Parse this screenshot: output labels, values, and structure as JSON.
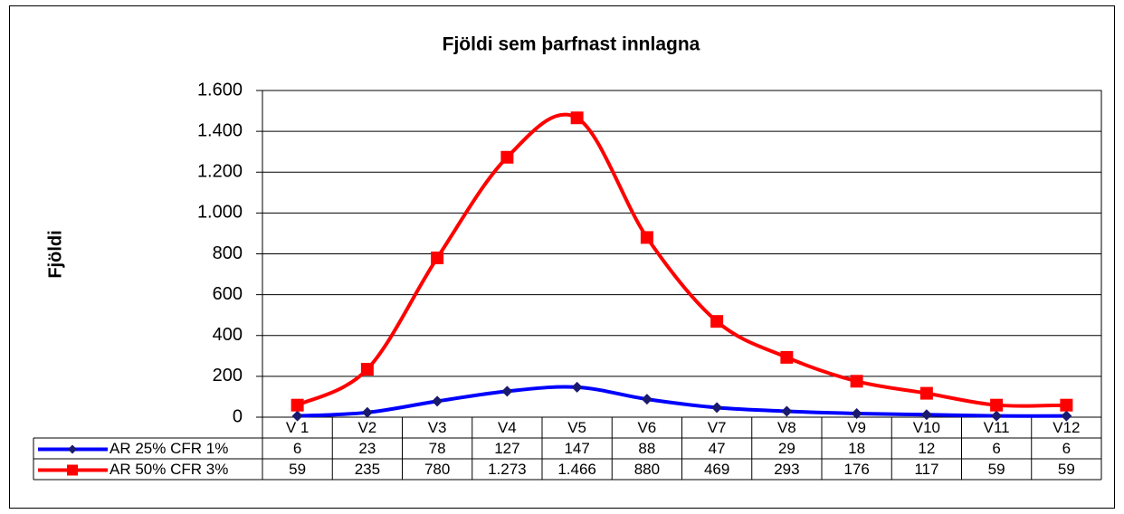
{
  "chart_data": {
    "type": "line",
    "title": "Fjöldi sem þarfnast innlagna",
    "ylabel": "Fjöldi",
    "categories": [
      "V 1",
      "V2",
      "V3",
      "V4",
      "V5",
      "V6",
      "V7",
      "V8",
      "V9",
      "V10",
      "V11",
      "V12"
    ],
    "series": [
      {
        "name": "AR 25% CFR 1%",
        "color": "#0000ff",
        "marker_color": "#1a1a6e",
        "marker": "diamond",
        "values": [
          6,
          23,
          78,
          127,
          147,
          88,
          47,
          29,
          18,
          12,
          6,
          6
        ]
      },
      {
        "name": "AR 50% CFR 3%",
        "color": "#ff0000",
        "marker_color": "#ff0000",
        "marker": "square",
        "values": [
          59,
          235,
          780,
          1273,
          1466,
          880,
          469,
          293,
          176,
          117,
          59,
          59
        ],
        "value_labels": [
          "59",
          "235",
          "780",
          "1.273",
          "1.466",
          "880",
          "469",
          "293",
          "176",
          "117",
          "59",
          "59"
        ]
      }
    ],
    "ylim": [
      0,
      1600
    ],
    "yticks": [
      0,
      200,
      400,
      600,
      800,
      {
        "value": 1000,
        "label": "1.000"
      },
      {
        "value": 1200,
        "label": "1.200"
      },
      {
        "value": 1400,
        "label": "1.400"
      },
      {
        "value": 1600,
        "label": "1.600"
      }
    ],
    "grid": true,
    "smooth": true
  }
}
